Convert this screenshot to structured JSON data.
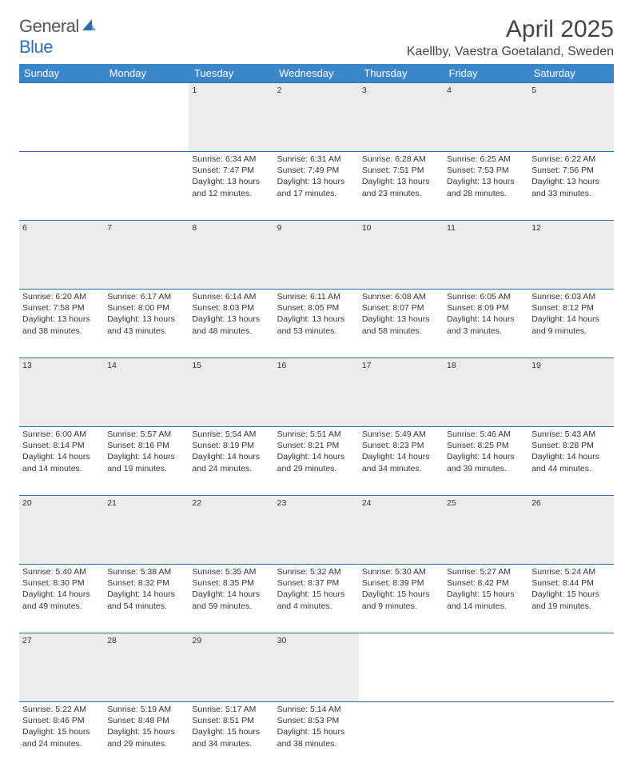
{
  "brand": {
    "name_part1": "General",
    "name_part2": "Blue"
  },
  "title": "April 2025",
  "location": "Kaellby, Vaestra Goetaland, Sweden",
  "colors": {
    "header_bg": "#3b86c7",
    "rule": "#2f6fad",
    "daynum_bg": "#ececec",
    "text": "#333333",
    "brand_gray": "#555555",
    "brand_blue": "#2f6fad"
  },
  "day_names": [
    "Sunday",
    "Monday",
    "Tuesday",
    "Wednesday",
    "Thursday",
    "Friday",
    "Saturday"
  ],
  "weeks": [
    {
      "nums": [
        "",
        "",
        "1",
        "2",
        "3",
        "4",
        "5"
      ],
      "cells": [
        null,
        null,
        {
          "sunrise": "6:34 AM",
          "sunset": "7:47 PM",
          "daylight": "13 hours and 12 minutes."
        },
        {
          "sunrise": "6:31 AM",
          "sunset": "7:49 PM",
          "daylight": "13 hours and 17 minutes."
        },
        {
          "sunrise": "6:28 AM",
          "sunset": "7:51 PM",
          "daylight": "13 hours and 23 minutes."
        },
        {
          "sunrise": "6:25 AM",
          "sunset": "7:53 PM",
          "daylight": "13 hours and 28 minutes."
        },
        {
          "sunrise": "6:22 AM",
          "sunset": "7:56 PM",
          "daylight": "13 hours and 33 minutes."
        }
      ]
    },
    {
      "nums": [
        "6",
        "7",
        "8",
        "9",
        "10",
        "11",
        "12"
      ],
      "cells": [
        {
          "sunrise": "6:20 AM",
          "sunset": "7:58 PM",
          "daylight": "13 hours and 38 minutes."
        },
        {
          "sunrise": "6:17 AM",
          "sunset": "8:00 PM",
          "daylight": "13 hours and 43 minutes."
        },
        {
          "sunrise": "6:14 AM",
          "sunset": "8:03 PM",
          "daylight": "13 hours and 48 minutes."
        },
        {
          "sunrise": "6:11 AM",
          "sunset": "8:05 PM",
          "daylight": "13 hours and 53 minutes."
        },
        {
          "sunrise": "6:08 AM",
          "sunset": "8:07 PM",
          "daylight": "13 hours and 58 minutes."
        },
        {
          "sunrise": "6:05 AM",
          "sunset": "8:09 PM",
          "daylight": "14 hours and 3 minutes."
        },
        {
          "sunrise": "6:03 AM",
          "sunset": "8:12 PM",
          "daylight": "14 hours and 9 minutes."
        }
      ]
    },
    {
      "nums": [
        "13",
        "14",
        "15",
        "16",
        "17",
        "18",
        "19"
      ],
      "cells": [
        {
          "sunrise": "6:00 AM",
          "sunset": "8:14 PM",
          "daylight": "14 hours and 14 minutes."
        },
        {
          "sunrise": "5:57 AM",
          "sunset": "8:16 PM",
          "daylight": "14 hours and 19 minutes."
        },
        {
          "sunrise": "5:54 AM",
          "sunset": "8:19 PM",
          "daylight": "14 hours and 24 minutes."
        },
        {
          "sunrise": "5:51 AM",
          "sunset": "8:21 PM",
          "daylight": "14 hours and 29 minutes."
        },
        {
          "sunrise": "5:49 AM",
          "sunset": "8:23 PM",
          "daylight": "14 hours and 34 minutes."
        },
        {
          "sunrise": "5:46 AM",
          "sunset": "8:25 PM",
          "daylight": "14 hours and 39 minutes."
        },
        {
          "sunrise": "5:43 AM",
          "sunset": "8:28 PM",
          "daylight": "14 hours and 44 minutes."
        }
      ]
    },
    {
      "nums": [
        "20",
        "21",
        "22",
        "23",
        "24",
        "25",
        "26"
      ],
      "cells": [
        {
          "sunrise": "5:40 AM",
          "sunset": "8:30 PM",
          "daylight": "14 hours and 49 minutes."
        },
        {
          "sunrise": "5:38 AM",
          "sunset": "8:32 PM",
          "daylight": "14 hours and 54 minutes."
        },
        {
          "sunrise": "5:35 AM",
          "sunset": "8:35 PM",
          "daylight": "14 hours and 59 minutes."
        },
        {
          "sunrise": "5:32 AM",
          "sunset": "8:37 PM",
          "daylight": "15 hours and 4 minutes."
        },
        {
          "sunrise": "5:30 AM",
          "sunset": "8:39 PM",
          "daylight": "15 hours and 9 minutes."
        },
        {
          "sunrise": "5:27 AM",
          "sunset": "8:42 PM",
          "daylight": "15 hours and 14 minutes."
        },
        {
          "sunrise": "5:24 AM",
          "sunset": "8:44 PM",
          "daylight": "15 hours and 19 minutes."
        }
      ]
    },
    {
      "nums": [
        "27",
        "28",
        "29",
        "30",
        "",
        "",
        ""
      ],
      "cells": [
        {
          "sunrise": "5:22 AM",
          "sunset": "8:46 PM",
          "daylight": "15 hours and 24 minutes."
        },
        {
          "sunrise": "5:19 AM",
          "sunset": "8:48 PM",
          "daylight": "15 hours and 29 minutes."
        },
        {
          "sunrise": "5:17 AM",
          "sunset": "8:51 PM",
          "daylight": "15 hours and 34 minutes."
        },
        {
          "sunrise": "5:14 AM",
          "sunset": "8:53 PM",
          "daylight": "15 hours and 38 minutes."
        },
        null,
        null,
        null
      ]
    }
  ],
  "labels": {
    "sunrise": "Sunrise:",
    "sunset": "Sunset:",
    "daylight": "Daylight:"
  }
}
